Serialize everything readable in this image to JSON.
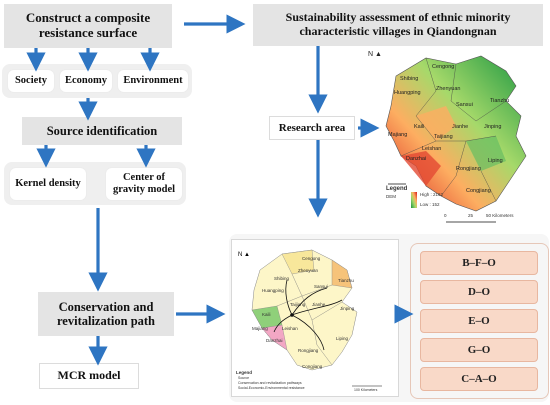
{
  "boxes": {
    "composite": "Construct a composite resistance surface",
    "assessment": "Sustainability assessment of ethnic minority characteristic villages in Qiandongnan",
    "source": "Source identification",
    "research": "Research area",
    "conservation": "Conservation and revitalization path",
    "mcr": "MCR model"
  },
  "factors": [
    "Society",
    "Economy",
    "Environment"
  ],
  "methods": [
    "Kernel density",
    "Center of gravity model"
  ],
  "paths": [
    "B–F–O",
    "D–O",
    "E–O",
    "G–O",
    "C–A–O"
  ],
  "dem_map": {
    "counties": [
      "Cengong",
      "Shibing",
      "Zhenyuan",
      "Huangping",
      "Sansui",
      "Tianzhu",
      "Kaili",
      "Taijiang",
      "Jinping",
      "Jianhe",
      "Majiang",
      "Leishan",
      "Danzhai",
      "Liping",
      "Rongjiang",
      "Congjiang"
    ],
    "legend_title": "Legend",
    "legend_sub": "DEM",
    "legend_high": "High : 2162",
    "legend_low": "Low : 152",
    "scale_labels": [
      "0",
      "25",
      "50 Kilometers"
    ]
  },
  "path_map": {
    "counties": [
      "Cengong",
      "Zhenyuan",
      "Shibing",
      "Huangping",
      "Sansui",
      "Tianzhu",
      "Kaili",
      "Taijiang",
      "Jinping",
      "Jianhe",
      "Majiang",
      "Leishan",
      "Danzhai",
      "Liping",
      "Rongjiang",
      "Congjiang"
    ],
    "legend_title": "Legend",
    "legend_items": [
      "Source",
      "Conservation and revitalization pathways",
      "Social-Economic-Environmental resistance"
    ],
    "scale_label": "100 Kilometers"
  },
  "colors": {
    "arrow": "#2e75c2",
    "grey_box": "#e4e4e4",
    "pink_box": "#f9d9c8"
  }
}
